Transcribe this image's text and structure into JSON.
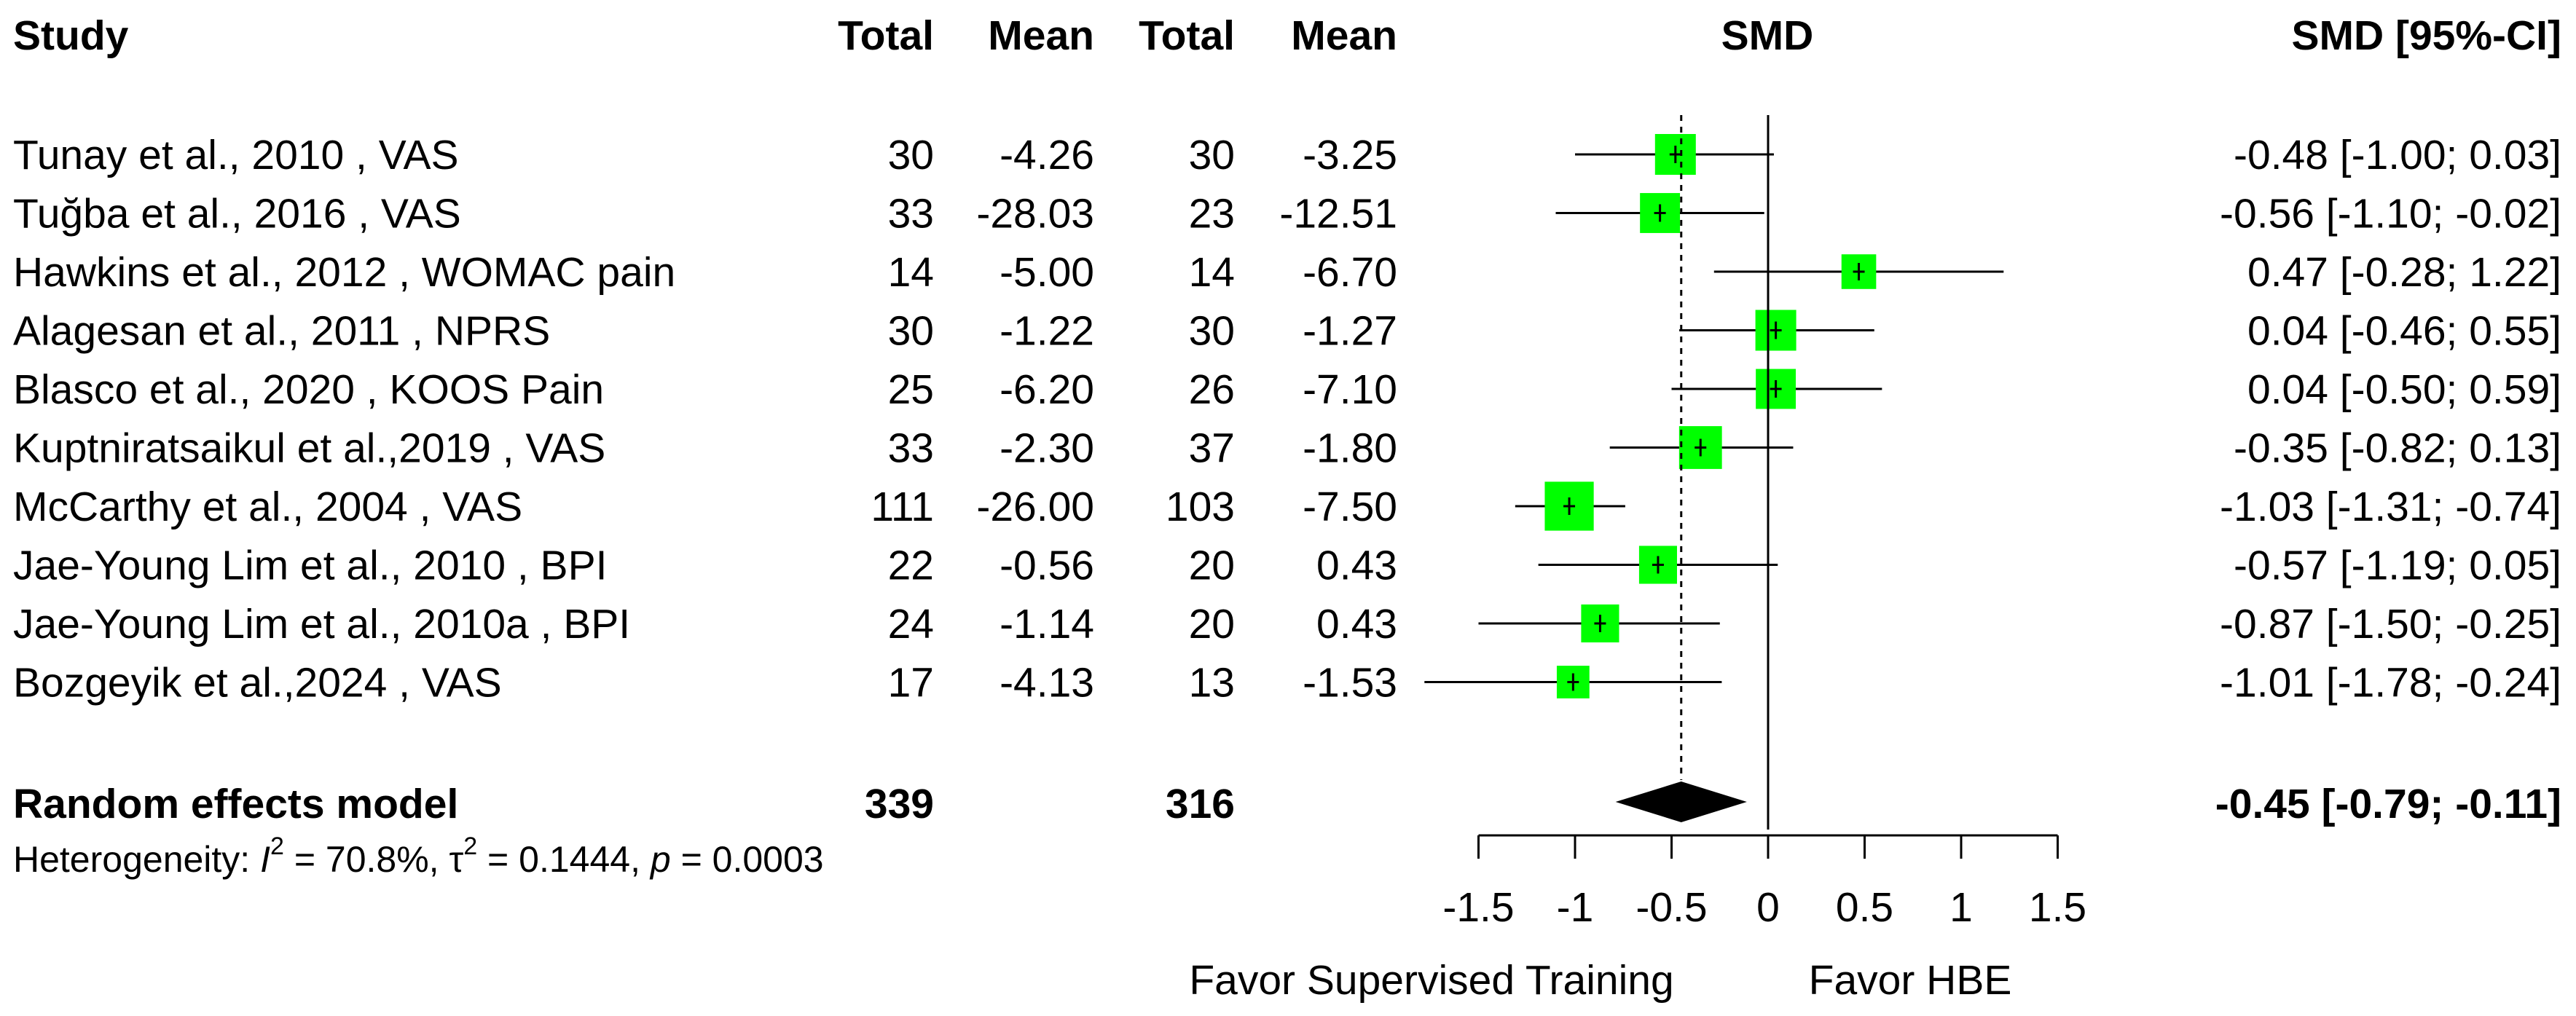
{
  "chart_data": {
    "type": "forest",
    "headers": {
      "study": "Study",
      "total_exp": "Total",
      "mean_exp": "Mean",
      "total_ctrl": "Total",
      "mean_ctrl": "Mean",
      "smd": "SMD",
      "smd_ci": "SMD [95%-CI]"
    },
    "studies": [
      {
        "study": "Tunay et al., 2010 , VAS",
        "total_exp": "30",
        "mean_exp": "-4.26",
        "total_ctrl": "30",
        "mean_ctrl": "-3.25",
        "smd": -0.48,
        "lower": -1.0,
        "upper": 0.03,
        "weight": 1.0,
        "ci_text": "-0.48 [-1.00;  0.03]"
      },
      {
        "study": "Tuğba et al., 2016 , VAS",
        "total_exp": "33",
        "mean_exp": "-28.03",
        "total_ctrl": "23",
        "mean_ctrl": "-12.51",
        "smd": -0.56,
        "lower": -1.1,
        "upper": -0.02,
        "weight": 0.98,
        "ci_text": "-0.56 [-1.10; -0.02]"
      },
      {
        "study": "Hawkins et al., 2012 , WOMAC pain",
        "total_exp": "14",
        "mean_exp": "-5.00",
        "total_ctrl": "14",
        "mean_ctrl": "-6.70",
        "smd": 0.47,
        "lower": -0.28,
        "upper": 1.22,
        "weight": 0.85,
        "ci_text": "0.47 [-0.28;  1.22]"
      },
      {
        "study": "Alagesan et al., 2011 , NPRS",
        "total_exp": "30",
        "mean_exp": "-1.22",
        "total_ctrl": "30",
        "mean_ctrl": "-1.27",
        "smd": 0.04,
        "lower": -0.46,
        "upper": 0.55,
        "weight": 1.0,
        "ci_text": "0.04 [-0.46;  0.55]"
      },
      {
        "study": "Blasco et al., 2020 , KOOS Pain",
        "total_exp": "25",
        "mean_exp": "-6.20",
        "total_ctrl": "26",
        "mean_ctrl": "-7.10",
        "smd": 0.04,
        "lower": -0.5,
        "upper": 0.59,
        "weight": 0.98,
        "ci_text": "0.04 [-0.50;  0.59]"
      },
      {
        "study": "Kuptniratsaikul et al.,2019 , VAS",
        "total_exp": "33",
        "mean_exp": "-2.30",
        "total_ctrl": "37",
        "mean_ctrl": "-1.80",
        "smd": -0.35,
        "lower": -0.82,
        "upper": 0.13,
        "weight": 1.05,
        "ci_text": "-0.35 [-0.82;  0.13]"
      },
      {
        "study": "McCarthy et al., 2004 , VAS",
        "total_exp": "111",
        "mean_exp": "-26.00",
        "total_ctrl": "103",
        "mean_ctrl": "-7.50",
        "smd": -1.03,
        "lower": -1.31,
        "upper": -0.74,
        "weight": 1.2,
        "ci_text": "-1.03 [-1.31; -0.74]"
      },
      {
        "study": "Jae-Young Lim et al., 2010 , BPI",
        "total_exp": "22",
        "mean_exp": "-0.56",
        "total_ctrl": "20",
        "mean_ctrl": "0.43",
        "smd": -0.57,
        "lower": -1.19,
        "upper": 0.05,
        "weight": 0.93,
        "ci_text": "-0.57 [-1.19;  0.05]"
      },
      {
        "study": "Jae-Young Lim et al., 2010a , BPI",
        "total_exp": "24",
        "mean_exp": "-1.14",
        "total_ctrl": "20",
        "mean_ctrl": "0.43",
        "smd": -0.87,
        "lower": -1.5,
        "upper": -0.25,
        "weight": 0.93,
        "ci_text": "-0.87 [-1.50; -0.25]"
      },
      {
        "study": "Bozgeyik et al.,2024 , VAS",
        "total_exp": "17",
        "mean_exp": "-4.13",
        "total_ctrl": "13",
        "mean_ctrl": "-1.53",
        "smd": -1.01,
        "lower": -1.78,
        "upper": -0.24,
        "weight": 0.8,
        "ci_text": "-1.01 [-1.78; -0.24]"
      }
    ],
    "summary": {
      "label": "Random effects model",
      "total_exp": "339",
      "total_ctrl": "316",
      "smd": -0.45,
      "lower": -0.79,
      "upper": -0.11,
      "ci_text": "-0.45 [-0.79; -0.11]"
    },
    "heterogeneity": {
      "prefix": "Heterogeneity: ",
      "i2_symbol": "I",
      "sup": "2",
      "i2_value": " = 70.8%, ",
      "tau_symbol": "τ",
      "tau_value": " = 0.1444, ",
      "p_symbol": "p",
      "p_value": " = 0.0003"
    },
    "x_axis": {
      "ticks": [
        -1.5,
        -1,
        -0.5,
        0,
        0.5,
        1,
        1.5
      ],
      "tick_labels": [
        "-1.5",
        "-1",
        "-0.5",
        "0",
        "0.5",
        "1",
        "1.5"
      ],
      "xlim": [
        -1.5,
        1.5
      ],
      "label_left": "Favor Supervised Training",
      "label_right": "Favor HBE"
    },
    "colors": {
      "box": "#00ff00",
      "diamond": "#000000",
      "line": "#000000"
    }
  }
}
